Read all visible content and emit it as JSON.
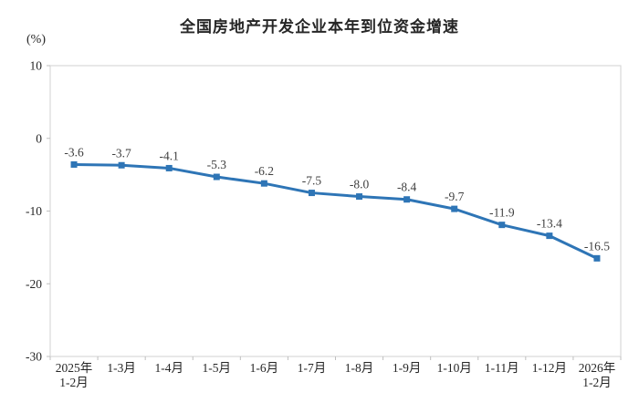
{
  "chart_data": {
    "type": "line",
    "title": "全国房地产开发企业本年到位资金增速",
    "unit": "(%)",
    "categories": [
      "2025年\n1-2月",
      "1-3月",
      "1-4月",
      "1-5月",
      "1-6月",
      "1-7月",
      "1-8月",
      "1-9月",
      "1-10月",
      "1-11月",
      "1-12月",
      "2026年\n1-2月"
    ],
    "values": [
      -3.6,
      -3.7,
      -4.1,
      -5.3,
      -6.2,
      -7.5,
      -8.0,
      -8.4,
      -9.7,
      -11.9,
      -13.4,
      -16.5
    ],
    "data_labels": [
      "-3.6",
      "-3.7",
      "-4.1",
      "-5.3",
      "-6.2",
      "-7.5",
      "-8.0",
      "-8.4",
      "-9.7",
      "-11.9",
      "-13.4",
      "-16.5"
    ],
    "y_ticks": [
      10,
      0,
      -10,
      -20,
      -30
    ],
    "ylim": [
      -30,
      10
    ],
    "grid": false,
    "legend": "none",
    "marker_shape": "square",
    "colors": {
      "line": "#2E75B6",
      "plot_border": "#D9D9D9",
      "tick_mark": "#BFBFBF",
      "data_label_text": "#404040",
      "axis_label_text": "#262626"
    }
  }
}
